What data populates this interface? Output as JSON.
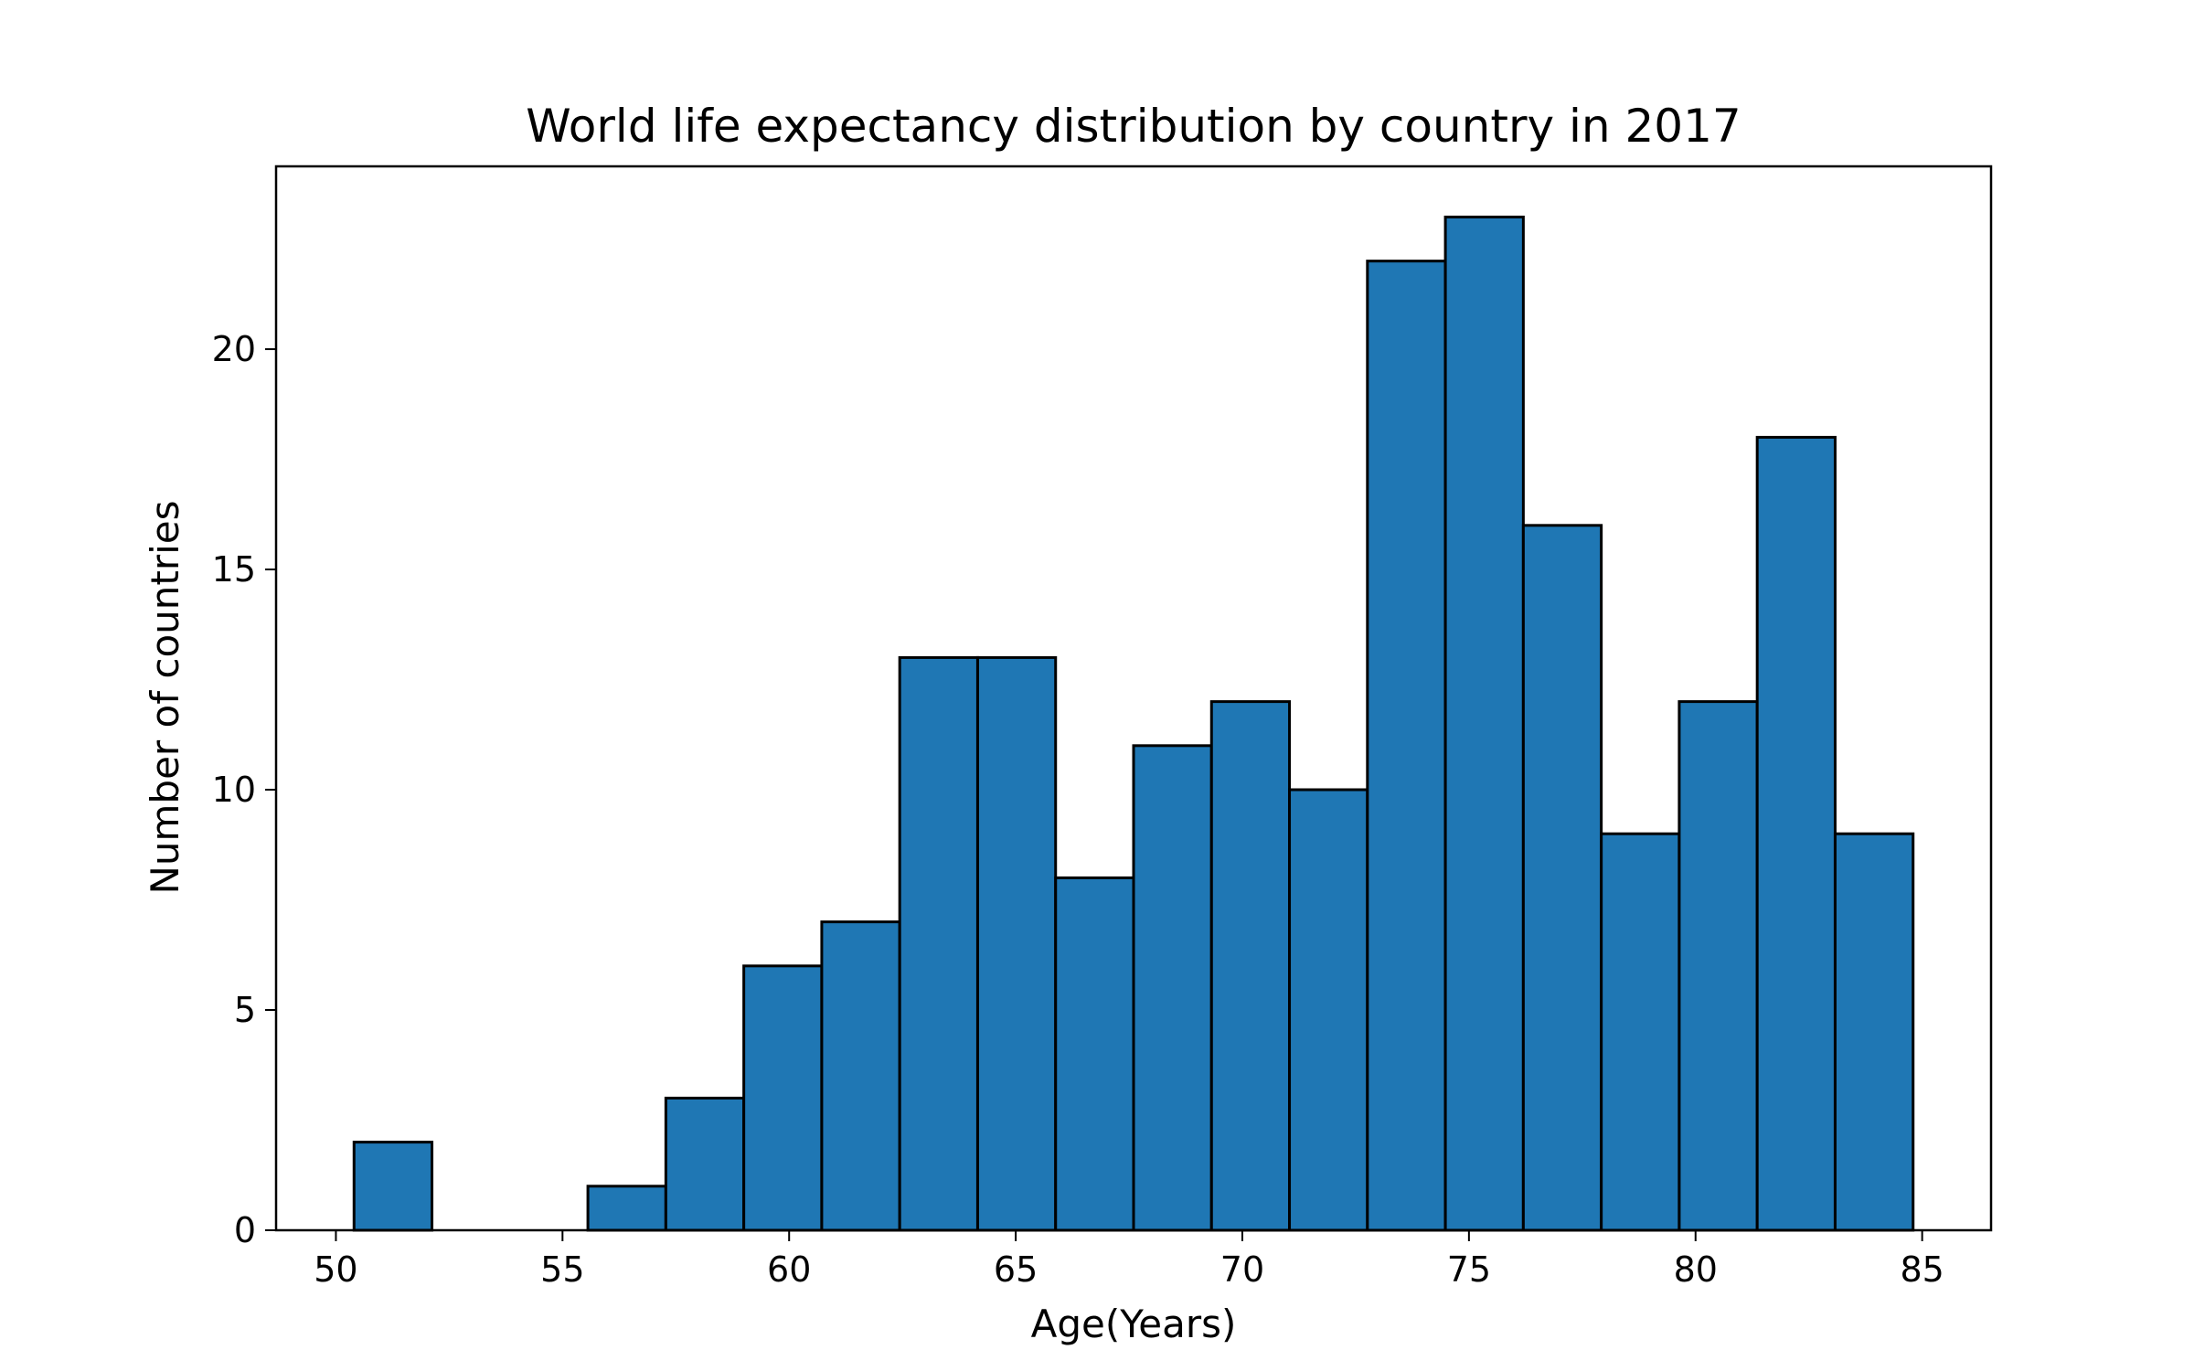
{
  "chart_data": {
    "type": "bar",
    "title": "World life expectancy distribution by country in 2017",
    "xlabel": "Age(Years)",
    "ylabel": "Number of countries",
    "bin_edges": [
      50.4,
      52.12,
      53.84,
      55.56,
      57.28,
      59.0,
      60.72,
      62.44,
      64.16,
      65.88,
      67.6,
      69.32,
      71.04,
      72.76,
      74.48,
      76.2,
      77.92,
      79.64,
      81.36,
      83.08,
      84.8
    ],
    "values": [
      2,
      0,
      0,
      1,
      3,
      6,
      7,
      13,
      13,
      8,
      11,
      12,
      10,
      22,
      23,
      16,
      9,
      12,
      18,
      9
    ],
    "xlim": [
      48.68,
      86.52
    ],
    "ylim": [
      0,
      24.15
    ],
    "xticks": [
      50,
      55,
      60,
      65,
      70,
      75,
      80,
      85
    ],
    "yticks": [
      0,
      5,
      10,
      15,
      20
    ],
    "bar_color": "#1f77b4",
    "edge_color": "#000000",
    "grid": false,
    "legend": "none"
  }
}
